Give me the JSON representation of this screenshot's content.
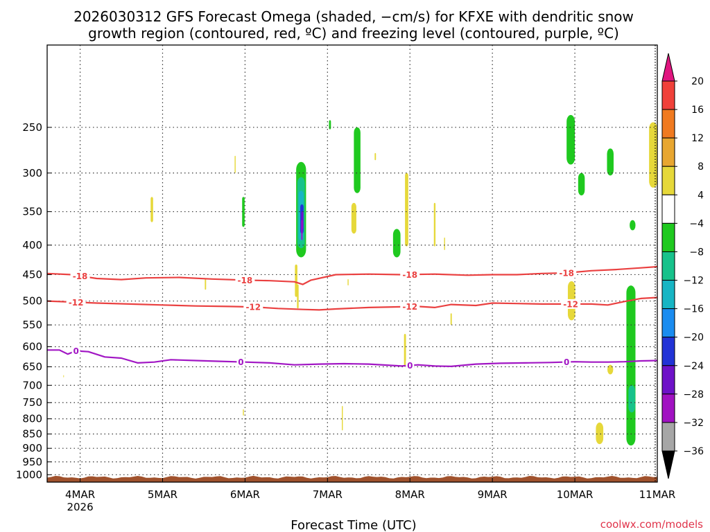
{
  "chart_data": {
    "type": "time-height",
    "title_line1": "2026030312 GFS Forecast Omega (shaded, −cm/s) for KFXE with dendritic snow",
    "title_line2": "growth region (contoured, red, ºC) and freezing level (contoured, purple, ºC)",
    "xlabel": "Forecast Time (UTC)",
    "credit": "coolwx.com/models",
    "x_range_days": [
      3.6,
      11.0
    ],
    "x_ticks": [
      {
        "label": "4MAR",
        "sub": "2026",
        "day": 4
      },
      {
        "label": "5MAR",
        "sub": "",
        "day": 5
      },
      {
        "label": "6MAR",
        "sub": "",
        "day": 6
      },
      {
        "label": "7MAR",
        "sub": "",
        "day": 7
      },
      {
        "label": "8MAR",
        "sub": "",
        "day": 8
      },
      {
        "label": "9MAR",
        "sub": "",
        "day": 9
      },
      {
        "label": "10MAR",
        "sub": "",
        "day": 10
      },
      {
        "label": "11MAR",
        "sub": "",
        "day": 11
      }
    ],
    "y_range_hpa": [
      1030,
      180
    ],
    "y_ticks": [
      {
        "label": "250",
        "value": 250
      },
      {
        "label": "300",
        "value": 300
      },
      {
        "label": "350",
        "value": 350
      },
      {
        "label": "400",
        "value": 400
      },
      {
        "label": "450",
        "value": 450
      },
      {
        "label": "500",
        "value": 500
      },
      {
        "label": "550",
        "value": 550
      },
      {
        "label": "600",
        "value": 600
      },
      {
        "label": "650",
        "value": 650
      },
      {
        "label": "700",
        "value": 700
      },
      {
        "label": "750",
        "value": 750
      },
      {
        "label": "800",
        "value": 800
      },
      {
        "label": "850",
        "value": 850
      },
      {
        "label": "900",
        "value": 900
      },
      {
        "label": "950",
        "value": 950
      },
      {
        "label": "1000",
        "value": 1000
      }
    ],
    "colorbar": {
      "labels": [
        "20",
        "16",
        "12",
        "8",
        "4",
        "−4",
        "−8",
        "−12",
        "−16",
        "−20",
        "−24",
        "−28",
        "−32",
        "−36"
      ],
      "top_arrow_color": "#e0157f",
      "bottom_arrow_color": "#000000",
      "bins": [
        {
          "color": "#f0413a"
        },
        {
          "color": "#f07a20"
        },
        {
          "color": "#e8a630"
        },
        {
          "color": "#e6d83a"
        },
        {
          "color": "#ffffff"
        },
        {
          "color": "#1fc91f"
        },
        {
          "color": "#17c28b"
        },
        {
          "color": "#17b5c4"
        },
        {
          "color": "#1a8cf0"
        },
        {
          "color": "#2233d6"
        },
        {
          "color": "#6e12c8"
        },
        {
          "color": "#a112c2"
        },
        {
          "color": "#a6a6a6"
        }
      ]
    },
    "series": [
      {
        "name": "-18 contour",
        "color": "#ea4040",
        "label": "-18",
        "points": [
          [
            3.6,
            448
          ],
          [
            3.9,
            450
          ],
          [
            4.2,
            457
          ],
          [
            4.5,
            459
          ],
          [
            4.8,
            456
          ],
          [
            5.2,
            455
          ],
          [
            5.6,
            458
          ],
          [
            6.0,
            460
          ],
          [
            6.3,
            461
          ],
          [
            6.6,
            463
          ],
          [
            6.7,
            468
          ],
          [
            6.8,
            460
          ],
          [
            7.1,
            450
          ],
          [
            7.5,
            449
          ],
          [
            7.9,
            450
          ],
          [
            8.3,
            449
          ],
          [
            8.7,
            451
          ],
          [
            9.0,
            450
          ],
          [
            9.3,
            450
          ],
          [
            9.6,
            448
          ],
          [
            9.9,
            447
          ],
          [
            10.2,
            443
          ],
          [
            10.5,
            441
          ],
          [
            10.8,
            438
          ],
          [
            11.0,
            436
          ]
        ],
        "label_days": [
          4.0,
          6.0,
          8.0,
          9.9
        ]
      },
      {
        "name": "-12 contour",
        "color": "#ea4040",
        "label": "-12",
        "points": [
          [
            3.6,
            500
          ],
          [
            3.9,
            502
          ],
          [
            4.2,
            504
          ],
          [
            4.6,
            506
          ],
          [
            5.0,
            508
          ],
          [
            5.4,
            510
          ],
          [
            5.8,
            511
          ],
          [
            6.1,
            512
          ],
          [
            6.4,
            515
          ],
          [
            6.7,
            517
          ],
          [
            6.9,
            518
          ],
          [
            7.1,
            516
          ],
          [
            7.5,
            513
          ],
          [
            7.8,
            512
          ],
          [
            8.1,
            511
          ],
          [
            8.3,
            513
          ],
          [
            8.5,
            507
          ],
          [
            8.8,
            509
          ],
          [
            9.0,
            504
          ],
          [
            9.3,
            505
          ],
          [
            9.6,
            506
          ],
          [
            9.9,
            506
          ],
          [
            10.2,
            506
          ],
          [
            10.4,
            508
          ],
          [
            10.6,
            501
          ],
          [
            10.8,
            495
          ],
          [
            11.0,
            493
          ]
        ],
        "label_days": [
          3.95,
          6.1,
          8.0,
          9.95
        ]
      },
      {
        "name": "0 freezing level",
        "color": "#a116c4",
        "label": "0",
        "points": [
          [
            3.6,
            608
          ],
          [
            3.75,
            608
          ],
          [
            3.85,
            618
          ],
          [
            3.95,
            610
          ],
          [
            4.1,
            612
          ],
          [
            4.3,
            625
          ],
          [
            4.5,
            628
          ],
          [
            4.7,
            640
          ],
          [
            4.9,
            638
          ],
          [
            5.1,
            632
          ],
          [
            5.4,
            634
          ],
          [
            5.7,
            636
          ],
          [
            6.0,
            638
          ],
          [
            6.3,
            640
          ],
          [
            6.6,
            645
          ],
          [
            6.9,
            643
          ],
          [
            7.2,
            642
          ],
          [
            7.5,
            643
          ],
          [
            7.9,
            648
          ],
          [
            8.1,
            645
          ],
          [
            8.3,
            648
          ],
          [
            8.5,
            649
          ],
          [
            8.8,
            643
          ],
          [
            9.1,
            641
          ],
          [
            9.4,
            640
          ],
          [
            9.7,
            639
          ],
          [
            10.0,
            637
          ],
          [
            10.2,
            638
          ],
          [
            10.4,
            638
          ],
          [
            10.6,
            637
          ],
          [
            10.8,
            635
          ],
          [
            11.0,
            634
          ]
        ],
        "label_days": [
          3.95,
          5.95,
          8.0,
          9.9
        ]
      }
    ],
    "shaded_cells": [
      {
        "day": 6.68,
        "p_top": 287,
        "p_bot": 420,
        "halfwidth_days": 0.06,
        "omega": -6
      },
      {
        "day": 6.68,
        "p_top": 305,
        "p_bot": 405,
        "halfwidth_days": 0.045,
        "omega": -10
      },
      {
        "day": 6.68,
        "p_top": 322,
        "p_bot": 393,
        "halfwidth_days": 0.03,
        "omega": -14
      },
      {
        "day": 6.69,
        "p_top": 340,
        "p_bot": 382,
        "halfwidth_days": 0.02,
        "omega": -20
      },
      {
        "day": 6.695,
        "p_top": 350,
        "p_bot": 375,
        "halfwidth_days": 0.012,
        "omega": -26
      },
      {
        "day": 6.69,
        "p_top": 362,
        "p_bot": 392,
        "halfwidth_days": 0.008,
        "omega": -30
      },
      {
        "day": 7.36,
        "p_top": 250,
        "p_bot": 325,
        "halfwidth_days": 0.04,
        "omega": -6
      },
      {
        "day": 7.03,
        "p_top": 243,
        "p_bot": 252,
        "halfwidth_days": 0.012,
        "omega": -6
      },
      {
        "day": 5.98,
        "p_top": 330,
        "p_bot": 372,
        "halfwidth_days": 0.015,
        "omega": -6
      },
      {
        "day": 7.84,
        "p_top": 375,
        "p_bot": 420,
        "halfwidth_days": 0.045,
        "omega": -6
      },
      {
        "day": 9.95,
        "p_top": 238,
        "p_bot": 290,
        "halfwidth_days": 0.05,
        "omega": -6
      },
      {
        "day": 10.08,
        "p_top": 300,
        "p_bot": 328,
        "halfwidth_days": 0.04,
        "omega": -6
      },
      {
        "day": 10.43,
        "p_top": 272,
        "p_bot": 303,
        "halfwidth_days": 0.04,
        "omega": -6
      },
      {
        "day": 10.7,
        "p_top": 362,
        "p_bot": 377,
        "halfwidth_days": 0.035,
        "omega": -6
      },
      {
        "day": 10.97,
        "p_top": 274,
        "p_bot": 288,
        "halfwidth_days": 0.04,
        "omega": -6
      },
      {
        "day": 10.68,
        "p_top": 470,
        "p_bot": 890,
        "halfwidth_days": 0.055,
        "omega": -6
      },
      {
        "day": 10.69,
        "p_top": 700,
        "p_bot": 780,
        "halfwidth_days": 0.04,
        "omega": -10
      },
      {
        "day": 4.87,
        "p_top": 330,
        "p_bot": 365,
        "halfwidth_days": 0.015,
        "omega": 5
      },
      {
        "day": 5.88,
        "p_top": 280,
        "p_bot": 300,
        "halfwidth_days": 0.006,
        "omega": 5
      },
      {
        "day": 7.32,
        "p_top": 338,
        "p_bot": 382,
        "halfwidth_days": 0.03,
        "omega": 5
      },
      {
        "day": 7.58,
        "p_top": 277,
        "p_bot": 285,
        "halfwidth_days": 0.008,
        "omega": 5
      },
      {
        "day": 7.96,
        "p_top": 300,
        "p_bot": 402,
        "halfwidth_days": 0.02,
        "omega": 5
      },
      {
        "day": 8.3,
        "p_top": 338,
        "p_bot": 402,
        "halfwidth_days": 0.01,
        "omega": 5
      },
      {
        "day": 8.42,
        "p_top": 388,
        "p_bot": 408,
        "halfwidth_days": 0.006,
        "omega": 5
      },
      {
        "day": 6.62,
        "p_top": 432,
        "p_bot": 492,
        "halfwidth_days": 0.015,
        "omega": 5
      },
      {
        "day": 6.64,
        "p_top": 468,
        "p_bot": 515,
        "halfwidth_days": 0.01,
        "omega": 5
      },
      {
        "day": 7.25,
        "p_top": 458,
        "p_bot": 470,
        "halfwidth_days": 0.006,
        "omega": 5
      },
      {
        "day": 5.52,
        "p_top": 457,
        "p_bot": 478,
        "halfwidth_days": 0.008,
        "omega": 5
      },
      {
        "day": 7.94,
        "p_top": 570,
        "p_bot": 650,
        "halfwidth_days": 0.012,
        "omega": 5
      },
      {
        "day": 8.5,
        "p_top": 525,
        "p_bot": 550,
        "halfwidth_days": 0.008,
        "omega": 5
      },
      {
        "day": 9.96,
        "p_top": 462,
        "p_bot": 540,
        "halfwidth_days": 0.045,
        "omega": 5
      },
      {
        "day": 10.43,
        "p_top": 645,
        "p_bot": 670,
        "halfwidth_days": 0.035,
        "omega": 5
      },
      {
        "day": 10.95,
        "p_top": 245,
        "p_bot": 318,
        "halfwidth_days": 0.05,
        "omega": 5
      },
      {
        "day": 10.3,
        "p_top": 812,
        "p_bot": 885,
        "halfwidth_days": 0.045,
        "omega": 5
      },
      {
        "day": 5.98,
        "p_top": 770,
        "p_bot": 790,
        "halfwidth_days": 0.006,
        "omega": 5
      },
      {
        "day": 7.18,
        "p_top": 760,
        "p_bot": 838,
        "halfwidth_days": 0.006,
        "omega": 5
      },
      {
        "day": 3.8,
        "p_top": 672,
        "p_bot": 678,
        "halfwidth_days": 0.004,
        "omega": 5
      }
    ],
    "grid": true,
    "terrain": {
      "color": "#a0522d",
      "p_top": 1010
    }
  }
}
